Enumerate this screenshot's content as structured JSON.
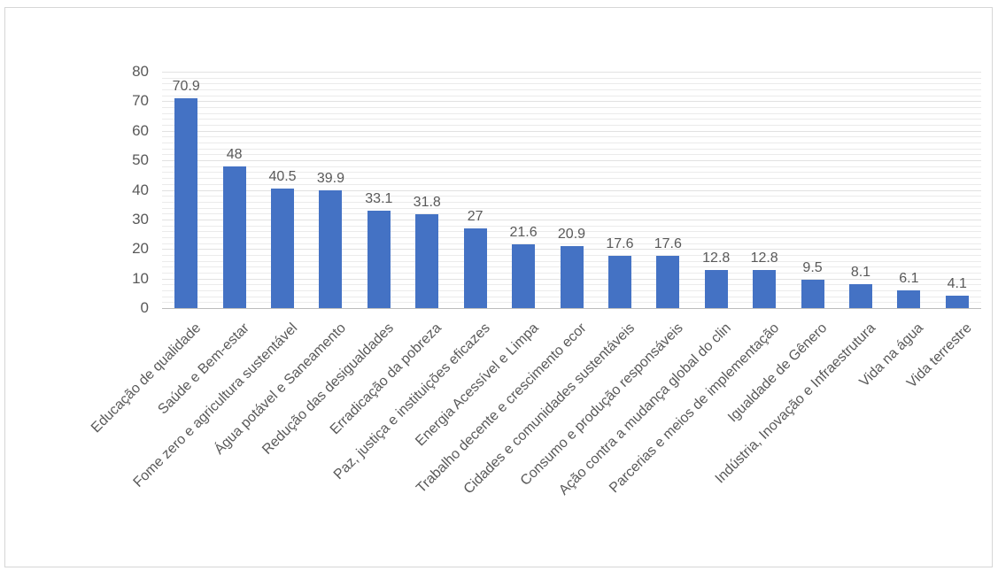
{
  "chart_data": {
    "type": "bar",
    "title": "",
    "xlabel": "",
    "ylabel": "",
    "categories": [
      "Educação de qualidade",
      "Saúde e Bem-estar",
      "Fome zero e agricultura sustentável",
      "Água potável e Saneamento",
      "Redução das desigualdades",
      "Erradicação da pobreza",
      "Paz, justiça e instituições eficazes",
      "Energia Acessível e Limpa",
      "Trabalho decente e crescimento ecor",
      "Cidades e comunidades sustentáveis",
      "Consumo e produção responsáveis",
      "Ação contra a mudança global do clin",
      "Parcerias e meios de implementação",
      "Igualdade de Gênero",
      "Indústria, Inovação e Infraestrutura",
      "Vida na água",
      "Vida terrestre"
    ],
    "values": [
      70.9,
      48,
      40.5,
      39.9,
      33.1,
      31.8,
      27,
      21.6,
      20.9,
      17.6,
      17.6,
      12.8,
      12.8,
      9.5,
      8.1,
      6.1,
      4.1
    ],
    "value_labels": [
      "70.9",
      "48",
      "40.5",
      "39.9",
      "33.1",
      "31.8",
      "27",
      "21.6",
      "20.9",
      "17.6",
      "17.6",
      "12.8",
      "12.8",
      "9.5",
      "8.1",
      "6.1",
      "4.1"
    ],
    "ylim": [
      0,
      80
    ],
    "yticks": [
      0,
      10,
      20,
      30,
      40,
      50,
      60,
      70,
      80
    ],
    "minor_grid_step": 2,
    "grid": true,
    "legend_position": "none",
    "colors": {
      "bar": "#4472c4",
      "text": "#595959",
      "gridline_minor": "#ebebeb",
      "gridline_major": "#e2e2e2",
      "axis_line": "#bdbdbd",
      "frame_border": "#d6d6d6",
      "background": "#ffffff"
    }
  }
}
